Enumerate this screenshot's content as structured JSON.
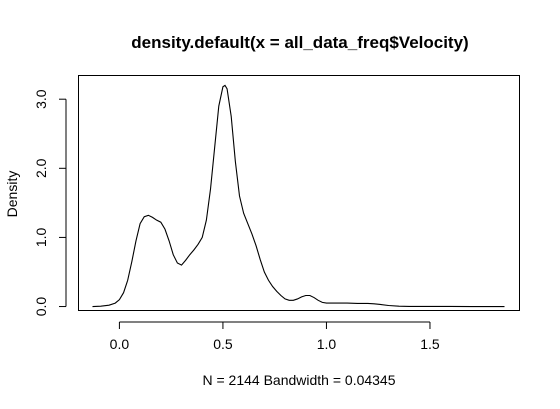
{
  "chart_data": {
    "type": "line",
    "title": "density.default(x = all_data_freq$Velocity)",
    "xlabel": "N = 2144   Bandwidth = 0.04345",
    "ylabel": "Density",
    "xlim": [
      -0.2,
      1.93
    ],
    "ylim": [
      -0.05,
      3.35
    ],
    "x_ticks": [
      0.0,
      0.5,
      1.0,
      1.5
    ],
    "x_tick_labels": [
      "0.0",
      "0.5",
      "1.0",
      "1.5"
    ],
    "y_ticks": [
      0.0,
      1.0,
      2.0,
      3.0
    ],
    "y_tick_labels": [
      "0.0",
      "1.0",
      "2.0",
      "3.0"
    ],
    "grid": false,
    "legend": "none",
    "series": [
      {
        "x": [
          -0.13,
          -0.09,
          -0.05,
          -0.02,
          0.0,
          0.02,
          0.04,
          0.06,
          0.08,
          0.1,
          0.12,
          0.14,
          0.16,
          0.18,
          0.2,
          0.22,
          0.24,
          0.26,
          0.28,
          0.3,
          0.32,
          0.34,
          0.36,
          0.38,
          0.4,
          0.42,
          0.44,
          0.46,
          0.48,
          0.5,
          0.51,
          0.52,
          0.54,
          0.56,
          0.58,
          0.6,
          0.62,
          0.64,
          0.66,
          0.68,
          0.7,
          0.72,
          0.74,
          0.76,
          0.78,
          0.8,
          0.82,
          0.84,
          0.86,
          0.88,
          0.9,
          0.92,
          0.94,
          0.96,
          0.98,
          1.0,
          1.02,
          1.05,
          1.1,
          1.15,
          1.2,
          1.23,
          1.26,
          1.3,
          1.35,
          1.4,
          1.5,
          1.6,
          1.7,
          1.8,
          1.86
        ],
        "y": [
          0.0,
          0.005,
          0.02,
          0.05,
          0.1,
          0.2,
          0.38,
          0.65,
          0.95,
          1.2,
          1.3,
          1.32,
          1.29,
          1.25,
          1.22,
          1.12,
          0.95,
          0.75,
          0.63,
          0.6,
          0.67,
          0.75,
          0.82,
          0.9,
          1.0,
          1.25,
          1.7,
          2.3,
          2.9,
          3.18,
          3.2,
          3.15,
          2.75,
          2.1,
          1.6,
          1.35,
          1.2,
          1.05,
          0.88,
          0.68,
          0.5,
          0.38,
          0.29,
          0.22,
          0.16,
          0.11,
          0.09,
          0.09,
          0.11,
          0.14,
          0.16,
          0.16,
          0.13,
          0.09,
          0.06,
          0.05,
          0.05,
          0.05,
          0.05,
          0.045,
          0.045,
          0.04,
          0.03,
          0.015,
          0.005,
          0.002,
          0.001,
          0.001,
          0.0,
          0.0,
          0.0
        ]
      }
    ]
  }
}
